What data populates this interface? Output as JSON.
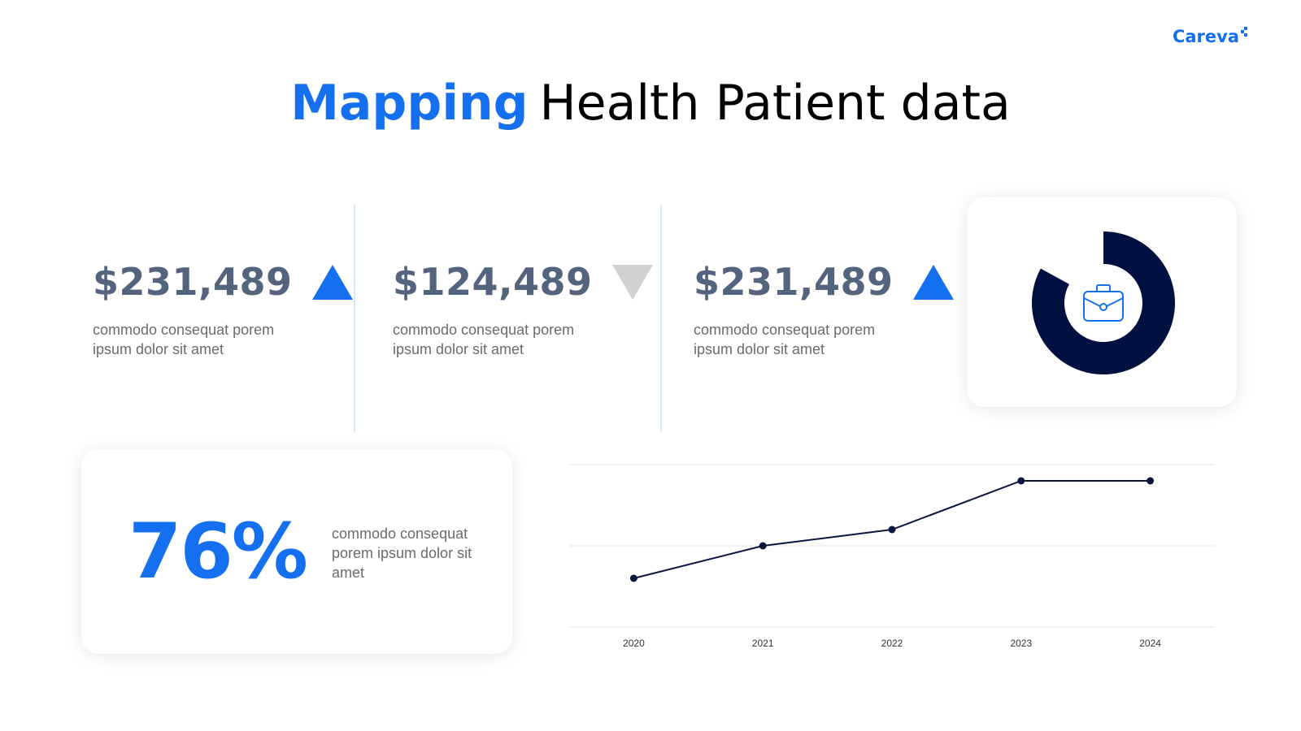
{
  "brand": {
    "name": "Careva"
  },
  "title": {
    "accent": "Mapping",
    "rest": "Health Patient data"
  },
  "stats": [
    {
      "value": "$231,489",
      "trend": "up",
      "desc": "commodo consequat porem ipsum dolor sit amet"
    },
    {
      "value": "$124,489",
      "trend": "down",
      "desc": "commodo consequat porem ipsum dolor sit amet"
    },
    {
      "value": "$231,489",
      "trend": "up",
      "desc": "commodo consequat porem ipsum dolor sit amet"
    }
  ],
  "donut": {
    "fraction": 0.83,
    "icon": "briefcase-icon",
    "color": "#001040",
    "icon_color": "#1570ef"
  },
  "highlight": {
    "value": "76%",
    "desc": "commodo consequat porem ipsum dolor sit amet"
  },
  "colors": {
    "accent": "#1570ef",
    "stat_value": "#54647f",
    "down_arrow": "#d1d1d1",
    "divider": "#d3ebf8",
    "line": "#0b1640"
  },
  "chart_data": {
    "type": "line",
    "x": [
      "2020",
      "2021",
      "2022",
      "2023",
      "2024"
    ],
    "series": [
      {
        "values": [
          12,
          20,
          24,
          36,
          36
        ]
      }
    ],
    "ylim": [
      0,
      40
    ],
    "grid": true,
    "title": "",
    "xlabel": "",
    "ylabel": ""
  }
}
